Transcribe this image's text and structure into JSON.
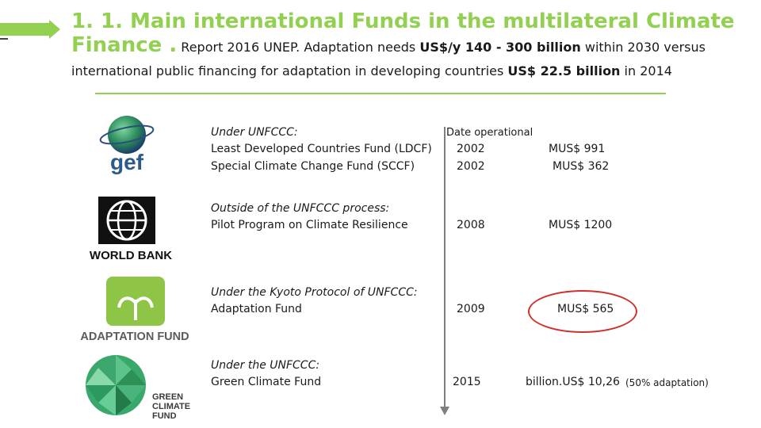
{
  "heading": {
    "title_line1": "1. 1. Main international Funds in the multilateral Climate",
    "title_line2": "Finance .",
    "subtitle_a": " Report 2016 UNEP. Adaptation needs ",
    "subtitle_b": "US$/y 140 - 300 billion",
    "subtitle_c": " within 2030  versus",
    "line2_a": "international public financing for adaptation in developing countries  ",
    "line2_b": "US$ 22.5 billion",
    "line2_c": " in 2014"
  },
  "column_header": "Date operational",
  "logos": {
    "gef": "gef",
    "worldbank": "WORLD BANK",
    "adaptation": "ADAPTATION FUND",
    "gcf": [
      "GREEN",
      "CLIMATE",
      "FUND"
    ]
  },
  "groups": [
    {
      "heading": "Under UNFCCC:",
      "rows": [
        {
          "name": "Least Developed Countries Fund (LDCF)",
          "year": "2002",
          "amount": "MUS$  991"
        },
        {
          "name": "Special Climate Change Fund (SCCF)",
          "year": "2002",
          "amount": "MUS$ 362"
        }
      ]
    },
    {
      "heading": "Outside of the UNFCCC process:",
      "rows": [
        {
          "name": "Pilot Program on Climate Resilience",
          "year": "2008",
          "amount": "MUS$ 1200"
        }
      ]
    },
    {
      "heading": "Under the Kyoto Protocol of UNFCCC:",
      "rows": [
        {
          "name": "Adaptation Fund",
          "year": "2009",
          "amount": "MUS$  565"
        }
      ]
    },
    {
      "heading": "Under the UNFCCC:",
      "rows": [
        {
          "name": "Green Climate Fund",
          "year": "2015",
          "amount": "billion.US$ 10,26",
          "note": "(50%   adaptation)"
        }
      ]
    }
  ],
  "colors": {
    "accent": "#92d050",
    "highlight": "#d0302c",
    "timeline": "#7f7f7f"
  }
}
